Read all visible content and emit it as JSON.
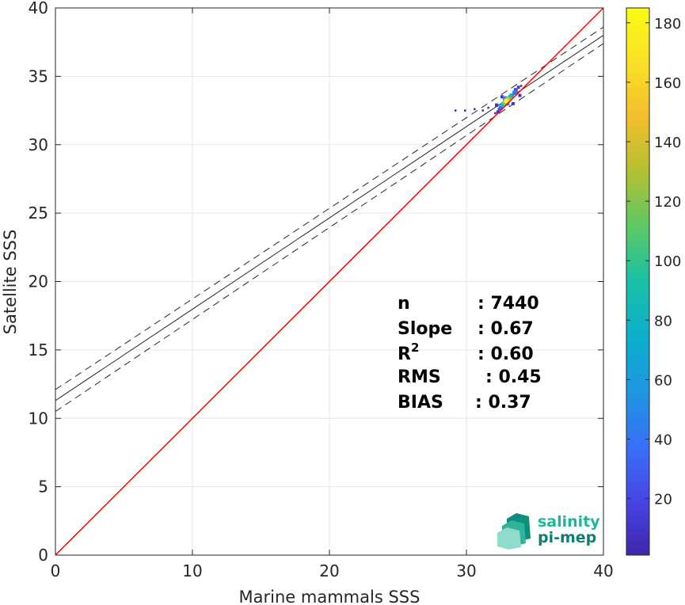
{
  "chart_data": {
    "type": "scatter",
    "title": "",
    "xlabel": "Marine mammals SSS",
    "ylabel": "Satellite SSS",
    "xlim": [
      0,
      40
    ],
    "ylim": [
      0,
      40
    ],
    "xticks": [
      "0",
      "10",
      "20",
      "30",
      "40"
    ],
    "yticks": [
      "0",
      "5",
      "10",
      "15",
      "20",
      "25",
      "30",
      "35",
      "40"
    ],
    "grid": true,
    "series": [
      {
        "kind": "density-scatter",
        "points": [
          {
            "x": 32.9,
            "y": 33.2,
            "count": 185
          },
          {
            "x": 33.0,
            "y": 33.3,
            "count": 150
          },
          {
            "x": 32.8,
            "y": 33.1,
            "count": 130
          },
          {
            "x": 33.1,
            "y": 33.4,
            "count": 110
          },
          {
            "x": 32.7,
            "y": 33.0,
            "count": 100
          },
          {
            "x": 33.2,
            "y": 33.5,
            "count": 85
          },
          {
            "x": 32.6,
            "y": 32.9,
            "count": 70
          },
          {
            "x": 33.3,
            "y": 33.6,
            "count": 60
          },
          {
            "x": 33.0,
            "y": 33.0,
            "count": 55
          },
          {
            "x": 32.8,
            "y": 33.4,
            "count": 50
          },
          {
            "x": 33.5,
            "y": 33.8,
            "count": 40
          },
          {
            "x": 32.5,
            "y": 32.7,
            "count": 35
          },
          {
            "x": 33.6,
            "y": 34.0,
            "count": 25
          },
          {
            "x": 32.4,
            "y": 32.6,
            "count": 20
          },
          {
            "x": 33.8,
            "y": 34.2,
            "count": 15
          },
          {
            "x": 32.3,
            "y": 32.4,
            "count": 10
          },
          {
            "x": 33.4,
            "y": 33.0,
            "count": 12
          },
          {
            "x": 32.6,
            "y": 33.5,
            "count": 10
          },
          {
            "x": 33.9,
            "y": 33.6,
            "count": 6
          },
          {
            "x": 32.2,
            "y": 32.9,
            "count": 5
          },
          {
            "x": 31.6,
            "y": 32.7,
            "count": 2
          },
          {
            "x": 31.2,
            "y": 32.5,
            "count": 1
          },
          {
            "x": 30.6,
            "y": 32.6,
            "count": 1
          },
          {
            "x": 29.9,
            "y": 32.5,
            "count": 1
          },
          {
            "x": 29.2,
            "y": 32.5,
            "count": 1
          },
          {
            "x": 32.1,
            "y": 32.3,
            "count": 3
          },
          {
            "x": 34.0,
            "y": 34.3,
            "count": 3
          }
        ]
      }
    ],
    "reference_line": {
      "name": "1:1",
      "color": "#ff0000",
      "from": [
        0,
        0
      ],
      "to": [
        40,
        40
      ]
    },
    "regression": {
      "fit": {
        "x": [
          0,
          40
        ],
        "y": [
          11.3,
          38.0
        ]
      },
      "upper": {
        "x": [
          0,
          40
        ],
        "y": [
          12.1,
          38.6
        ]
      },
      "lower": {
        "x": [
          0,
          40
        ],
        "y": [
          10.5,
          37.4
        ]
      }
    },
    "colorbar": {
      "min": 1,
      "max": 185,
      "ticks": [
        "20",
        "40",
        "60",
        "80",
        "100",
        "120",
        "140",
        "160",
        "180"
      ],
      "colors": [
        "#3e26a8",
        "#4745e5",
        "#3871f8",
        "#1e96e0",
        "#0cb0cb",
        "#19c0a6",
        "#5bc865",
        "#b3c032",
        "#f2be2d",
        "#f9e128",
        "#f9fb15"
      ]
    },
    "stats": [
      {
        "label": "n",
        "value": ": 7440"
      },
      {
        "label": "Slope",
        "value": ": 0.67"
      },
      {
        "label": "R",
        "sup": "2",
        "value": ": 0.60"
      },
      {
        "label": "RMS",
        "value": ": 0.45"
      },
      {
        "label": "BIAS",
        "value": ": 0.37"
      }
    ]
  },
  "logo": {
    "line1": "salinity",
    "line2": "pi-mep",
    "color1": "#1fb59a",
    "color2": "#0d7f71"
  }
}
